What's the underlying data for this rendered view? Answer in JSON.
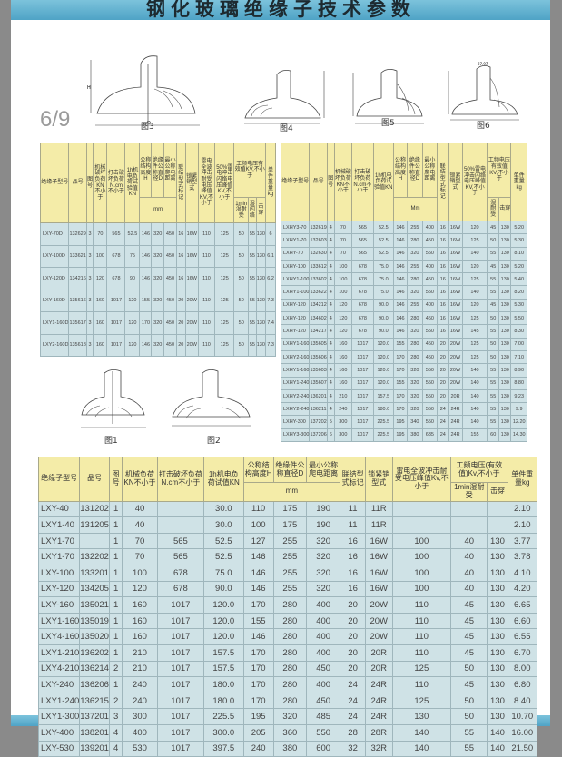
{
  "title": "钢化玻璃绝缘子技术参数",
  "page_indicator": "6/9",
  "figures": {
    "fig1": "图1",
    "fig2": "图2",
    "fig3": "图3",
    "fig4": "图4",
    "fig5": "图5",
    "fig6": "图6",
    "dim_h": "H",
    "dim_d": "D",
    "fig6_note": "27.97"
  },
  "colors": {
    "header": "#f4eca8",
    "body": "#cfe2e6",
    "band": "#5fb0d0"
  },
  "table_left": {
    "headers": [
      "绝缘子型号",
      "品号",
      "图号",
      "机械破坏负荷KN不小于",
      "打击破坏负荷N.cm不小于",
      "1h机电负荷试验值KN",
      "公称结构高度H",
      "绝缘件公称直径D",
      "最小公称爬电距离",
      "联结型式标记",
      "锁紧销型式",
      "雷电全波冲击耐受电压峰值KV,不小于",
      "50%雷电冲击闪络电压峰值KV,不小于",
      "工频电压有效值KV,不小于",
      "1min湿耐受",
      "湿闪络",
      "击穿",
      "单件重量kg",
      "mm"
    ],
    "rows": [
      [
        "LXY-70D",
        "132629",
        "3",
        "70",
        "565",
        "52.5",
        "146",
        "320",
        "450",
        "16",
        "16W",
        "110",
        "125",
        "50",
        "55",
        "130",
        "6"
      ],
      [
        "LXY-100D",
        "133621",
        "3",
        "100",
        "678",
        "75",
        "146",
        "320",
        "450",
        "16",
        "16W",
        "110",
        "125",
        "50",
        "55",
        "130",
        "6.1"
      ],
      [
        "LXY-120D",
        "134216",
        "3",
        "120",
        "678",
        "90",
        "146",
        "320",
        "450",
        "16",
        "16W",
        "110",
        "125",
        "50",
        "55",
        "130",
        "6.2"
      ],
      [
        "LXY-160D",
        "135616",
        "3",
        "160",
        "1017",
        "120",
        "155",
        "320",
        "450",
        "20",
        "20W",
        "110",
        "125",
        "50",
        "55",
        "130",
        "7.3"
      ],
      [
        "LXY1-160D",
        "135617",
        "3",
        "160",
        "1017",
        "120",
        "170",
        "320",
        "450",
        "20",
        "20W",
        "110",
        "125",
        "50",
        "55",
        "130",
        "7.4"
      ],
      [
        "LXY2-160D",
        "135618",
        "3",
        "160",
        "1017",
        "120",
        "146",
        "320",
        "450",
        "20",
        "20W",
        "110",
        "125",
        "50",
        "55",
        "130",
        "7.3"
      ]
    ]
  },
  "table_right": {
    "headers": [
      "绝缘子型号",
      "品号",
      "图号",
      "机械破坏负荷KN不小于",
      "打击破坏负荷N.cm不小于",
      "1h机电负荷试验值KN",
      "公称结构高度H",
      "绝缘件公称直径D",
      "最小公称爬电距离",
      "联结型式标记",
      "锁紧销型式",
      "50%雷电冲击闪络电压峰值KV,不小于",
      "工频电压有效值KV,不小于",
      "湿耐受",
      "击穿",
      "单件重量kg",
      "Mm"
    ],
    "rows": [
      [
        "LXHY3-70",
        "132619",
        "4",
        "70",
        "565",
        "52.5",
        "146",
        "255",
        "400",
        "16",
        "16W",
        "120",
        "45",
        "130",
        "5.20"
      ],
      [
        "LXHY1-70",
        "132603",
        "4",
        "70",
        "565",
        "52.5",
        "146",
        "280",
        "450",
        "16",
        "16W",
        "125",
        "50",
        "130",
        "5.30"
      ],
      [
        "LXHY-70",
        "132630",
        "4",
        "70",
        "565",
        "52.5",
        "146",
        "320",
        "550",
        "16",
        "16W",
        "140",
        "55",
        "130",
        "8.10"
      ],
      [
        "LXHY-100",
        "133612",
        "4",
        "100",
        "678",
        "75.0",
        "146",
        "255",
        "400",
        "16",
        "16W",
        "120",
        "45",
        "130",
        "5.20"
      ],
      [
        "LXHY1-100",
        "133602",
        "4",
        "100",
        "678",
        "75.0",
        "146",
        "280",
        "450",
        "16",
        "16W",
        "125",
        "55",
        "130",
        "5.40"
      ],
      [
        "LXHY1-100",
        "133622",
        "4",
        "100",
        "678",
        "75.0",
        "146",
        "320",
        "550",
        "16",
        "16W",
        "140",
        "55",
        "130",
        "8.20"
      ],
      [
        "LXHY-120",
        "134212",
        "4",
        "120",
        "678",
        "90.0",
        "146",
        "255",
        "400",
        "16",
        "16W",
        "120",
        "45",
        "130",
        "5.30"
      ],
      [
        "LXHY-120",
        "134602",
        "4",
        "120",
        "678",
        "90.0",
        "146",
        "280",
        "450",
        "16",
        "16W",
        "125",
        "50",
        "130",
        "5.50"
      ],
      [
        "LXHY-120",
        "134217",
        "4",
        "120",
        "678",
        "90.0",
        "146",
        "320",
        "550",
        "16",
        "16W",
        "145",
        "55",
        "130",
        "8.30"
      ],
      [
        "LXHY1-160",
        "135605",
        "4",
        "160",
        "1017",
        "120.0",
        "155",
        "280",
        "450",
        "20",
        "20W",
        "125",
        "50",
        "130",
        "7.00"
      ],
      [
        "LXHY2-160",
        "135606",
        "4",
        "160",
        "1017",
        "120.0",
        "170",
        "280",
        "450",
        "20",
        "20W",
        "125",
        "50",
        "130",
        "7.10"
      ],
      [
        "LXHY1-160",
        "135603",
        "4",
        "160",
        "1017",
        "120.0",
        "170",
        "320",
        "550",
        "20",
        "20W",
        "140",
        "55",
        "130",
        "8.90"
      ],
      [
        "LXHY1-240",
        "135607",
        "4",
        "160",
        "1017",
        "120.0",
        "155",
        "320",
        "550",
        "20",
        "20W",
        "140",
        "55",
        "130",
        "8.80"
      ],
      [
        "LXHY2-240",
        "136201",
        "4",
        "210",
        "1017",
        "157.5",
        "170",
        "320",
        "550",
        "20",
        "20R",
        "140",
        "55",
        "130",
        "9.23"
      ],
      [
        "LXHY2-240",
        "136211",
        "4",
        "240",
        "1017",
        "180.0",
        "170",
        "320",
        "550",
        "24",
        "24R",
        "140",
        "55",
        "130",
        "9.9"
      ],
      [
        "LXHY-300",
        "137202",
        "5",
        "300",
        "1017",
        "225.5",
        "195",
        "340",
        "550",
        "24",
        "24R",
        "140",
        "55",
        "130",
        "12.20"
      ],
      [
        "LXHY3-300",
        "137206",
        "6",
        "300",
        "1017",
        "225.5",
        "195",
        "380",
        "635",
        "24",
        "24R",
        "155",
        "60",
        "130",
        "14.30"
      ]
    ]
  },
  "table_bottom": {
    "headers": [
      "绝缘子型号",
      "品号",
      "图号",
      "机械负荷KN不小于",
      "打击破坏负荷N.cm不小于",
      "1h机电负荷试值KN",
      "公称结构高度H",
      "绝缘件公称直径D",
      "最小公称爬电距离",
      "联结型式标记",
      "锁紧销型式",
      "雷电全波冲击耐受电压峰值Kv,不小于",
      "工频电压(有效值)Kv,不小于",
      "1min湿耐受",
      "击穿",
      "单件重量kg",
      "mm"
    ],
    "rows": [
      [
        "LXY-40",
        "131202",
        "1",
        "40",
        "",
        "30.0",
        "110",
        "175",
        "190",
        "11",
        "11R",
        "",
        "",
        "",
        "2.10"
      ],
      [
        "LXY1-40",
        "131205",
        "1",
        "40",
        "",
        "30.0",
        "100",
        "175",
        "190",
        "11",
        "11R",
        "",
        "",
        "",
        "2.10"
      ],
      [
        "LXY1-70",
        "",
        "1",
        "70",
        "565",
        "52.5",
        "127",
        "255",
        "320",
        "16",
        "16W",
        "100",
        "40",
        "130",
        "3.77"
      ],
      [
        "LXY1-70",
        "132202",
        "1",
        "70",
        "565",
        "52.5",
        "146",
        "255",
        "320",
        "16",
        "16W",
        "100",
        "40",
        "130",
        "3.78"
      ],
      [
        "LXY-100",
        "133201",
        "1",
        "100",
        "678",
        "75.0",
        "146",
        "255",
        "320",
        "16",
        "16W",
        "100",
        "40",
        "130",
        "4.10"
      ],
      [
        "LXY-120",
        "134205",
        "1",
        "120",
        "678",
        "90.0",
        "146",
        "255",
        "320",
        "16",
        "16W",
        "100",
        "40",
        "130",
        "4.20"
      ],
      [
        "LXY-160",
        "135021",
        "1",
        "160",
        "1017",
        "120.0",
        "170",
        "280",
        "400",
        "20",
        "20W",
        "110",
        "45",
        "130",
        "6.65"
      ],
      [
        "LXY1-160",
        "135019",
        "1",
        "160",
        "1017",
        "120.0",
        "155",
        "280",
        "400",
        "20",
        "20W",
        "110",
        "45",
        "130",
        "6.60"
      ],
      [
        "LXY4-160",
        "135020",
        "1",
        "160",
        "1017",
        "120.0",
        "146",
        "280",
        "400",
        "20",
        "20W",
        "110",
        "45",
        "130",
        "6.55"
      ],
      [
        "LXY1-210",
        "136202",
        "1",
        "210",
        "1017",
        "157.5",
        "170",
        "280",
        "400",
        "20",
        "20R",
        "110",
        "45",
        "130",
        "6.70"
      ],
      [
        "LXY4-210",
        "136214",
        "2",
        "210",
        "1017",
        "157.5",
        "170",
        "280",
        "450",
        "20",
        "20R",
        "125",
        "50",
        "130",
        "8.00"
      ],
      [
        "LXY-240",
        "136206",
        "1",
        "240",
        "1017",
        "180.0",
        "170",
        "280",
        "400",
        "24",
        "24R",
        "110",
        "45",
        "130",
        "6.80"
      ],
      [
        "LXY1-240",
        "136215",
        "2",
        "240",
        "1017",
        "180.0",
        "170",
        "280",
        "450",
        "24",
        "24R",
        "125",
        "50",
        "130",
        "8.40"
      ],
      [
        "LXY1-300",
        "137201",
        "3",
        "300",
        "1017",
        "225.5",
        "195",
        "320",
        "485",
        "24",
        "24R",
        "130",
        "50",
        "130",
        "10.70"
      ],
      [
        "LXY-400",
        "138201",
        "4",
        "400",
        "1017",
        "300.0",
        "205",
        "360",
        "550",
        "28",
        "28R",
        "140",
        "55",
        "140",
        "16.00"
      ],
      [
        "LXY-530",
        "139201",
        "4",
        "530",
        "1017",
        "397.5",
        "240",
        "380",
        "600",
        "32",
        "32R",
        "140",
        "55",
        "140",
        "21.50"
      ]
    ]
  }
}
